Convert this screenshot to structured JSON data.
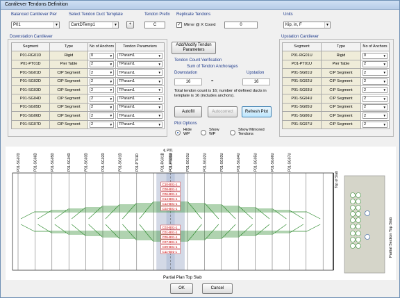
{
  "window": {
    "title": "Cantilever Tendons Definition"
  },
  "top": {
    "pier_label": "Balanced Cantilever Pier",
    "pier_value": "P01",
    "template_label": "Select Tendon Duct Template",
    "template_value": "CantDTemp1",
    "template_add": "+",
    "prefix_label": "Tendon Prefix",
    "prefix_value": "C",
    "replicate_label": "Replicate Tendons",
    "mirror_label": "Mirror @ X Coord",
    "mirror_checked": "✓",
    "mirror_value": "0",
    "units_label": "Units",
    "units_value": "Kip, in, F"
  },
  "downstation": {
    "title": "Downstation Cantilever",
    "headers": [
      "Segment",
      "Type",
      "No of Anchors",
      "Tendon Parameters"
    ],
    "rows": [
      {
        "segment": "P01-RG01D",
        "type": "Rigid",
        "anchors": "0",
        "param": "TParam1"
      },
      {
        "segment": "P01-PT01D",
        "type": "Pier Table",
        "anchors": "2",
        "param": "TParam1"
      },
      {
        "segment": "P01-SG01D",
        "type": "CIP Segment",
        "anchors": "2",
        "param": "TParam1"
      },
      {
        "segment": "P01-SG02D",
        "type": "CIP Segment",
        "anchors": "2",
        "param": "TParam1"
      },
      {
        "segment": "P01-SG03D",
        "type": "CIP Segment",
        "anchors": "2",
        "param": "TParam1"
      },
      {
        "segment": "P01-SG04D",
        "type": "CIP Segment",
        "anchors": "2",
        "param": "TParam1"
      },
      {
        "segment": "P01-SG05D",
        "type": "CIP Segment",
        "anchors": "2",
        "param": "TParam1"
      },
      {
        "segment": "P01-SG06D",
        "type": "CIP Segment",
        "anchors": "2",
        "param": "TParam1"
      },
      {
        "segment": "P01-SG07D",
        "type": "CIP Segment",
        "anchors": "2",
        "param": "TParam1"
      }
    ]
  },
  "upstation": {
    "title": "Upstation Cantilever",
    "headers": [
      "Segment",
      "Type",
      "No of Anchors"
    ],
    "rows": [
      {
        "segment": "P01-RG01U",
        "type": "Rigid",
        "anchors": "0"
      },
      {
        "segment": "P01-PT01U",
        "type": "Pier Table",
        "anchors": "2"
      },
      {
        "segment": "P01-SG01U",
        "type": "CIP Segment",
        "anchors": "2"
      },
      {
        "segment": "P01-SG02U",
        "type": "CIP Segment",
        "anchors": "2"
      },
      {
        "segment": "P01-SG03U",
        "type": "CIP Segment",
        "anchors": "2"
      },
      {
        "segment": "P01-SG04U",
        "type": "CIP Segment",
        "anchors": "2"
      },
      {
        "segment": "P01-SG05U",
        "type": "CIP Segment",
        "anchors": "2"
      },
      {
        "segment": "P01-SG06U",
        "type": "CIP Segment",
        "anchors": "2"
      },
      {
        "segment": "P01-SG07U",
        "type": "CIP Segment",
        "anchors": "2"
      }
    ]
  },
  "middle": {
    "add_modify": "Add/Modify Tendon Parameters",
    "verify_title": "Tendon Count Verification",
    "sum_label": "Sum of Tendon Anchorages",
    "down_label": "Downstation",
    "up_label": "Upstation",
    "down_value": "16",
    "equals": "=",
    "up_value": "16",
    "note": "Total tendon count is 16; number of defined ducts in template is 16 (includes anchors).",
    "autofill": "Autofill",
    "autocorrect": "Autocorrect",
    "refresh": "Refresh Plot",
    "plot_options": "Plot Options",
    "hide_wp": "Hide WP",
    "show_wp": "Show WP",
    "show_mirrored": "Show Mirrored Tendons"
  },
  "plot": {
    "down_segments": [
      "P01-SG07D",
      "P01-SG06D",
      "P01-SG05D",
      "P01-SG04D",
      "P01-SG03D",
      "P01-SG02D",
      "P01-SG01D",
      "P01-PT01D"
    ],
    "center_labels": [
      "P01-RG01D",
      "P01-RG01U"
    ],
    "up_segments": [
      "P01-PT01U",
      "P01-SG01U",
      "P01-SG02U",
      "P01-SG03U",
      "P01-SG04U",
      "P01-SG05U",
      "P01-SG06U",
      "P01-SG07U"
    ],
    "cl_label": "℄ P01",
    "top_of_slab": "Top of Slab",
    "plan_label": "Partial Plan Top Slab",
    "section_label": "Partial Section Top Slab",
    "duct_labels": [
      "C10-B01-1",
      "C08-B01-1",
      "C06-B01-1",
      "C14-B01-1",
      "C12-B01-1",
      "C02-B01-1",
      "C03-B01-1",
      "C01-B01-1",
      "C05-B01-1",
      "C07-B01-1",
      "C09-B01-1",
      "C11-B01-1"
    ],
    "tendon_color": "#2e8b2e",
    "tag_color": "#cc0000"
  },
  "footer": {
    "ok": "OK",
    "cancel": "Cancel"
  }
}
